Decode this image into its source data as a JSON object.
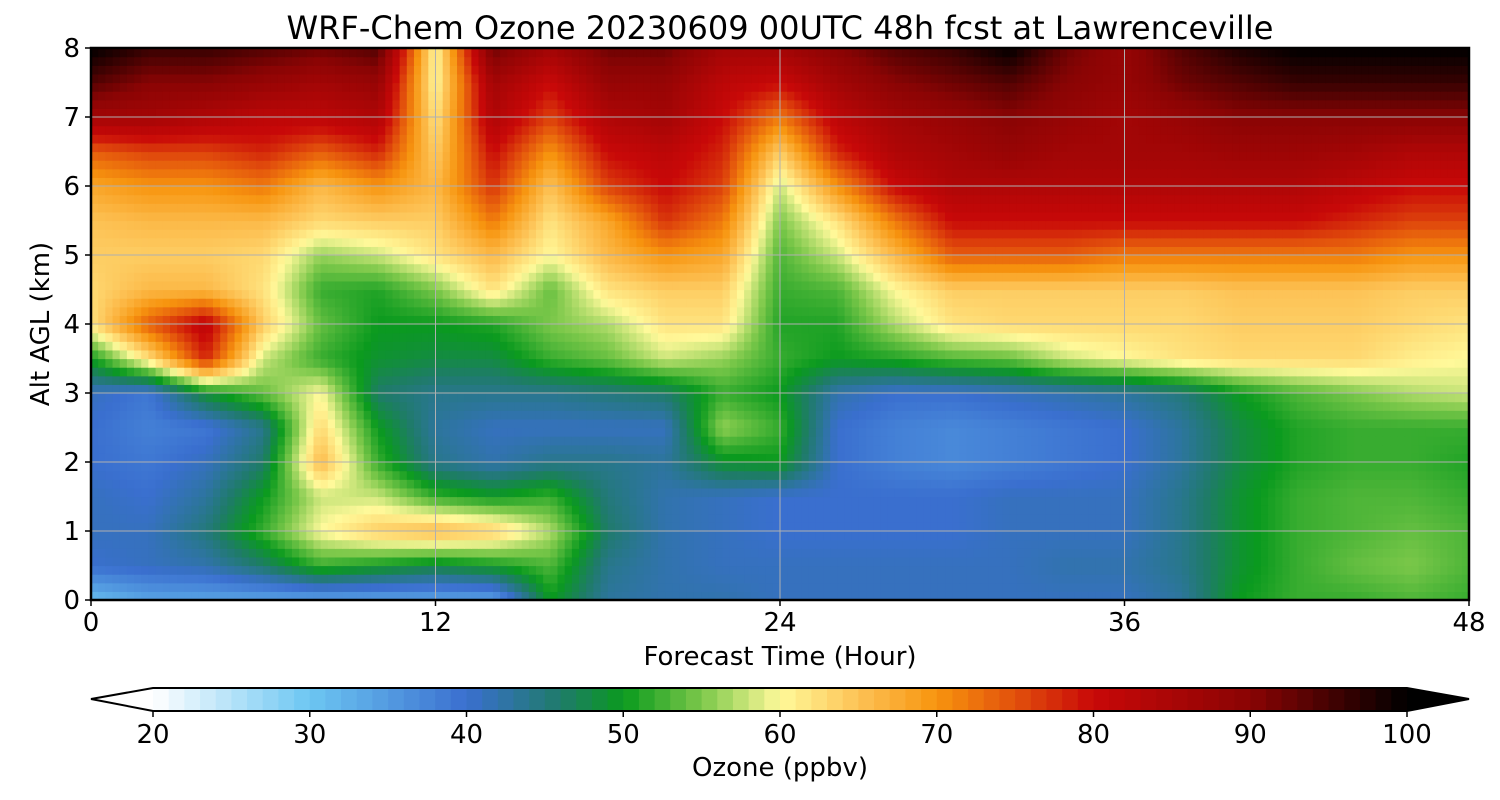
{
  "chart_data": {
    "type": "heatmap",
    "title": "WRF-Chem Ozone  20230609 00UTC 48h fcst at Lawrenceville",
    "xlabel": "Forecast Time (Hour)",
    "ylabel": "Alt AGL (km)",
    "xlim": [
      0,
      48
    ],
    "ylim": [
      0,
      8
    ],
    "xticks": [
      0,
      12,
      24,
      36,
      48
    ],
    "yticks": [
      0,
      1,
      2,
      3,
      4,
      5,
      6,
      7,
      8
    ],
    "grid": true,
    "colorbar": {
      "label": "Ozone  (ppbv)",
      "min": 20,
      "max": 100,
      "ticks": [
        20,
        30,
        40,
        50,
        60,
        70,
        80,
        90,
        100
      ],
      "extend": "both",
      "orientation": "horizontal",
      "color_stops": [
        {
          "v": 20,
          "c": "#ffffff"
        },
        {
          "v": 30,
          "c": "#6cc6f2"
        },
        {
          "v": 40,
          "c": "#3a6fcf"
        },
        {
          "v": 46,
          "c": "#1f7b6a"
        },
        {
          "v": 50,
          "c": "#0a9a1e"
        },
        {
          "v": 55,
          "c": "#7cc84a"
        },
        {
          "v": 60,
          "c": "#fff99a"
        },
        {
          "v": 65,
          "c": "#fdc255"
        },
        {
          "v": 70,
          "c": "#f7940e"
        },
        {
          "v": 75,
          "c": "#e2500c"
        },
        {
          "v": 80,
          "c": "#c80808"
        },
        {
          "v": 90,
          "c": "#8a0404"
        },
        {
          "v": 100,
          "c": "#000000"
        }
      ]
    },
    "grid_values": {
      "x_hours": [
        0,
        2,
        4,
        6,
        8,
        10,
        12,
        14,
        16,
        18,
        20,
        22,
        24,
        26,
        28,
        30,
        32,
        34,
        36,
        38,
        40,
        42,
        44,
        46,
        48
      ],
      "z_km": [
        0,
        0.5,
        1,
        1.5,
        2,
        2.5,
        3,
        3.5,
        4,
        4.5,
        5,
        5.5,
        6,
        6.5,
        7,
        7.5,
        8
      ],
      "values_by_altitude": [
        [
          31,
          34,
          34,
          34,
          34,
          34,
          34,
          34,
          50,
          43,
          42,
          42,
          41,
          41,
          41,
          41,
          41,
          41,
          41,
          43,
          50,
          52,
          52,
          53,
          52
        ],
        [
          40,
          41,
          42,
          46,
          52,
          50,
          48,
          50,
          53,
          44,
          42,
          41,
          41,
          41,
          41,
          41,
          41,
          42,
          42,
          44,
          49,
          52,
          54,
          55,
          53
        ],
        [
          41,
          41,
          45,
          52,
          60,
          64,
          66,
          64,
          57,
          46,
          42,
          41,
          40,
          40,
          40,
          40,
          41,
          41,
          41,
          44,
          49,
          52,
          53,
          54,
          53
        ],
        [
          41,
          40,
          43,
          50,
          58,
          58,
          52,
          50,
          52,
          45,
          42,
          41,
          40,
          40,
          40,
          40,
          41,
          41,
          41,
          44,
          49,
          52,
          53,
          53,
          52
        ],
        [
          40,
          39,
          41,
          46,
          66,
          52,
          44,
          42,
          44,
          44,
          43,
          49,
          50,
          40,
          38,
          37,
          38,
          39,
          40,
          43,
          48,
          51,
          52,
          52,
          51
        ],
        [
          40,
          38,
          39,
          44,
          63,
          50,
          43,
          41,
          41,
          41,
          41,
          56,
          52,
          40,
          38,
          37,
          38,
          39,
          40,
          43,
          48,
          51,
          52,
          52,
          52
        ],
        [
          41,
          39,
          49,
          54,
          60,
          46,
          44,
          44,
          44,
          45,
          46,
          52,
          50,
          42,
          40,
          40,
          41,
          42,
          43,
          45,
          50,
          53,
          55,
          57,
          58
        ],
        [
          50,
          62,
          78,
          58,
          52,
          49,
          48,
          48,
          52,
          54,
          58,
          56,
          52,
          50,
          51,
          53,
          54,
          58,
          60,
          62,
          63,
          63,
          63,
          61,
          60
        ],
        [
          62,
          74,
          82,
          64,
          54,
          50,
          50,
          51,
          55,
          57,
          62,
          62,
          51,
          51,
          57,
          62,
          63,
          63,
          63,
          63,
          64,
          64,
          64,
          63,
          62
        ],
        [
          63,
          66,
          66,
          62,
          52,
          51,
          55,
          62,
          54,
          62,
          64,
          64,
          52,
          53,
          60,
          64,
          64,
          64,
          64,
          64,
          65,
          65,
          65,
          64,
          64
        ],
        [
          64,
          64,
          64,
          63,
          56,
          58,
          62,
          66,
          60,
          66,
          70,
          68,
          53,
          58,
          66,
          74,
          74,
          74,
          72,
          72,
          72,
          72,
          72,
          70,
          70
        ],
        [
          65,
          66,
          66,
          66,
          63,
          64,
          64,
          72,
          62,
          68,
          77,
          72,
          55,
          62,
          72,
          80,
          80,
          80,
          80,
          80,
          80,
          80,
          78,
          76,
          76
        ],
        [
          68,
          70,
          70,
          72,
          66,
          70,
          66,
          77,
          65,
          76,
          80,
          76,
          58,
          70,
          80,
          84,
          84,
          84,
          84,
          84,
          84,
          84,
          82,
          80,
          80
        ],
        [
          74,
          76,
          76,
          78,
          74,
          78,
          64,
          80,
          70,
          80,
          82,
          78,
          64,
          78,
          84,
          86,
          88,
          86,
          86,
          86,
          87,
          87,
          86,
          84,
          84
        ],
        [
          86,
          86,
          84,
          82,
          82,
          84,
          62,
          84,
          76,
          84,
          86,
          80,
          72,
          82,
          86,
          88,
          90,
          88,
          86,
          88,
          90,
          90,
          90,
          90,
          90
        ],
        [
          94,
          90,
          90,
          88,
          86,
          88,
          60,
          86,
          80,
          88,
          88,
          82,
          80,
          86,
          90,
          92,
          94,
          90,
          88,
          92,
          94,
          96,
          96,
          96,
          96
        ],
        [
          100,
          96,
          96,
          94,
          92,
          94,
          60,
          92,
          86,
          92,
          92,
          86,
          86,
          90,
          94,
          96,
          100,
          92,
          88,
          94,
          98,
          100,
          100,
          100,
          100
        ]
      ]
    }
  }
}
